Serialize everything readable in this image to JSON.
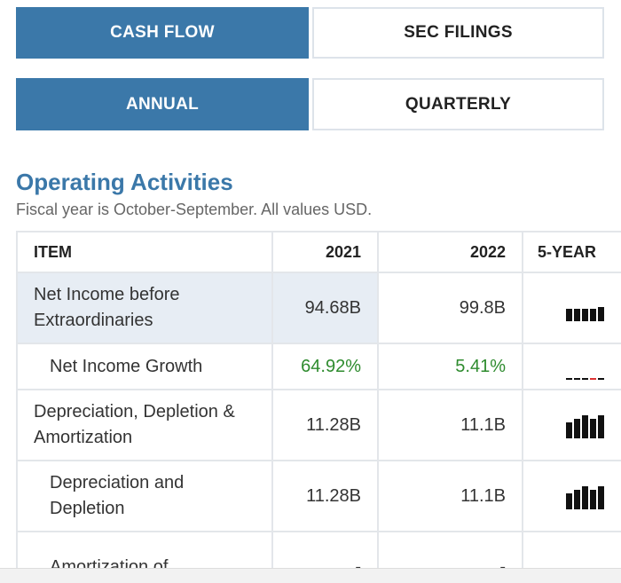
{
  "tabs": {
    "row1": [
      "CASH FLOW",
      "SEC FILINGS"
    ],
    "row2": [
      "ANNUAL",
      "QUARTERLY"
    ]
  },
  "section": {
    "title": "Operating Activities",
    "subtitle": "Fiscal year is October-September. All values USD."
  },
  "table": {
    "header": [
      "ITEM",
      "2021",
      "2022",
      "5-YEAR"
    ],
    "rows": [
      [
        "Net Income before Extraordinaries",
        "94.68B",
        "99.8B"
      ],
      [
        "Net Income Growth",
        "64.92%",
        "5.41%"
      ],
      [
        "Depreciation, Depletion & Amortization",
        "11.28B",
        "11.1B"
      ],
      [
        "Depreciation and Depletion",
        "11.28B",
        "11.1B"
      ],
      [
        "Amortization of",
        "-",
        "-"
      ]
    ]
  }
}
